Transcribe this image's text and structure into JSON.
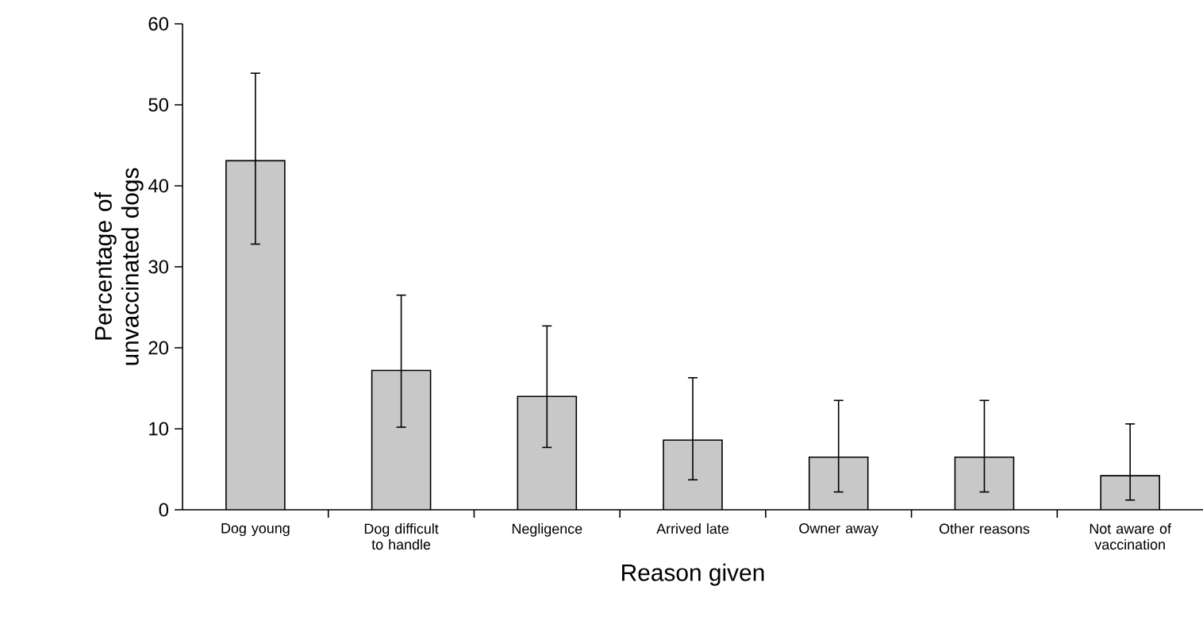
{
  "chart_data": {
    "type": "bar",
    "xlabel": "Reason given",
    "ylabel": "Percentage of unvaccinated dogs",
    "categories": [
      "Dog young",
      "Dog difficult to handle",
      "Negligence",
      "Arrived late",
      "Owner away",
      "Other reasons",
      "Not aware of vaccination"
    ],
    "values": [
      43.1,
      17.2,
      14.0,
      8.6,
      6.5,
      6.5,
      4.2
    ],
    "errors": [
      [
        32.8,
        53.9
      ],
      [
        10.2,
        26.5
      ],
      [
        7.7,
        22.7
      ],
      [
        3.7,
        16.3
      ],
      [
        2.2,
        13.5
      ],
      [
        2.2,
        13.5
      ],
      [
        1.2,
        10.6
      ]
    ],
    "color": "#c8c8c8",
    "ylim": [
      0,
      60
    ],
    "yticks": [
      0,
      10,
      20,
      30,
      40,
      50,
      60
    ],
    "grid": false
  }
}
